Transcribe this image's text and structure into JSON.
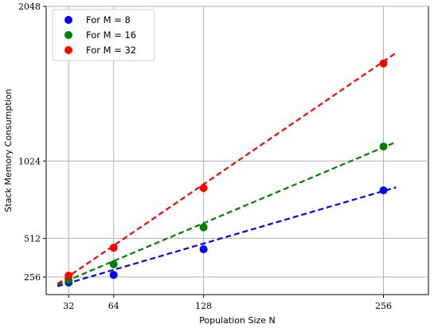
{
  "chart_data": {
    "type": "line",
    "xlabel": "Population Size N",
    "ylabel": "Stack Memory Consumption",
    "x_ticks": [
      {
        "value": 32,
        "label": "32"
      },
      {
        "value": 64,
        "label": "64"
      },
      {
        "value": 128,
        "label": "128"
      },
      {
        "value": 256,
        "label": "256"
      }
    ],
    "y_ticks": [
      {
        "value": 256,
        "label": "256"
      },
      {
        "value": 512,
        "label": "512"
      },
      {
        "value": 1024,
        "label": "1024"
      },
      {
        "value": 2048,
        "label": "2048"
      }
    ],
    "xlim": [
      16,
      288
    ],
    "ylim": [
      140,
      2048
    ],
    "grid": true,
    "legend_position": "top-left",
    "series": [
      {
        "name": "For M = 8",
        "color": "#0000ff",
        "x": [
          32,
          64,
          128,
          256
        ],
        "y": [
          220,
          270,
          440,
          830
        ],
        "fit": [
          [
            24,
            195
          ],
          [
            265,
            850
          ]
        ]
      },
      {
        "name": "For M = 16",
        "color": "#008000",
        "x": [
          32,
          64,
          128,
          256
        ],
        "y": [
          235,
          340,
          585,
          1120
        ],
        "fit": [
          [
            24,
            205
          ],
          [
            265,
            1150
          ]
        ]
      },
      {
        "name": "For M = 32",
        "color": "#ff0000",
        "x": [
          32,
          64,
          128,
          256
        ],
        "y": [
          265,
          450,
          845,
          1670
        ],
        "fit": [
          [
            24,
            210
          ],
          [
            265,
            1740
          ]
        ]
      }
    ]
  }
}
